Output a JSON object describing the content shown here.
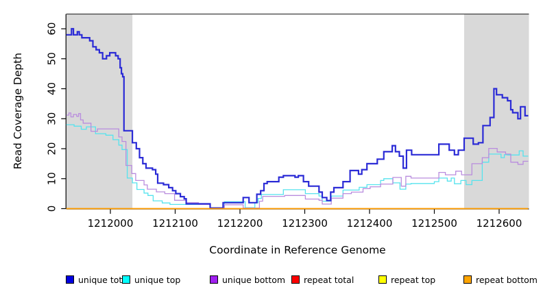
{
  "figure": {
    "background": "#ffffff",
    "shaded_region_color": "#d9d9d9",
    "top_border_color": "#3c3c3c"
  },
  "chart_data": {
    "type": "line",
    "subtype": "step",
    "title": "",
    "xlabel": "Coordinate in Reference Genome",
    "ylabel": "Read Coverage Depth",
    "xlim": [
      1211932,
      1212646
    ],
    "ylim": [
      0,
      65
    ],
    "x_ticks": [
      1212000,
      1212100,
      1212200,
      1212300,
      1212400,
      1212500,
      1212600
    ],
    "y_ticks": [
      0,
      10,
      20,
      30,
      40,
      50,
      60
    ],
    "grid": false,
    "legend_position": "bottom-horizontal",
    "shaded_regions": [
      {
        "x0": 1211932,
        "x1": 1212034
      },
      {
        "x0": 1212546,
        "x1": 1212646
      }
    ],
    "series": [
      {
        "name": "unique total",
        "color": "#2a2ad6",
        "legend_color": "#0000e0",
        "width": 2.2,
        "steps": [
          [
            1211932,
            58
          ],
          [
            1211940,
            60
          ],
          [
            1211943,
            58
          ],
          [
            1211949,
            59
          ],
          [
            1211952,
            58
          ],
          [
            1211956,
            57
          ],
          [
            1211968,
            56
          ],
          [
            1211973,
            54
          ],
          [
            1211978,
            53
          ],
          [
            1211983,
            52
          ],
          [
            1211988,
            50
          ],
          [
            1211994,
            51
          ],
          [
            1211999,
            52
          ],
          [
            1212008,
            51
          ],
          [
            1212012,
            50
          ],
          [
            1212015,
            47
          ],
          [
            1212017,
            45
          ],
          [
            1212019,
            44
          ],
          [
            1212021,
            26
          ],
          [
            1212034,
            22
          ],
          [
            1212040,
            20
          ],
          [
            1212045,
            17
          ],
          [
            1212050,
            15
          ],
          [
            1212055,
            13.5
          ],
          [
            1212065,
            13
          ],
          [
            1212070,
            11.5
          ],
          [
            1212073,
            8.5
          ],
          [
            1212082,
            8
          ],
          [
            1212090,
            7
          ],
          [
            1212096,
            6
          ],
          [
            1212101,
            5
          ],
          [
            1212108,
            4
          ],
          [
            1212114,
            3.3
          ],
          [
            1212117,
            1.6
          ],
          [
            1212154,
            0.2
          ],
          [
            1212174,
            2
          ],
          [
            1212205,
            3.7
          ],
          [
            1212214,
            2
          ],
          [
            1212226,
            4.8
          ],
          [
            1212232,
            6
          ],
          [
            1212237,
            8.4
          ],
          [
            1212242,
            9
          ],
          [
            1212260,
            10.5
          ],
          [
            1212267,
            11
          ],
          [
            1212285,
            10.5
          ],
          [
            1212290,
            11
          ],
          [
            1212298,
            9
          ],
          [
            1212306,
            7.5
          ],
          [
            1212322,
            5.5
          ],
          [
            1212327,
            3.7
          ],
          [
            1212334,
            2.7
          ],
          [
            1212340,
            5.5
          ],
          [
            1212345,
            7
          ],
          [
            1212359,
            9
          ],
          [
            1212370,
            12.7
          ],
          [
            1212383,
            11.5
          ],
          [
            1212388,
            13
          ],
          [
            1212396,
            15
          ],
          [
            1212412,
            16.5
          ],
          [
            1212422,
            19
          ],
          [
            1212435,
            21
          ],
          [
            1212440,
            19
          ],
          [
            1212446,
            17.5
          ],
          [
            1212452,
            13.5
          ],
          [
            1212457,
            19.5
          ],
          [
            1212465,
            18
          ],
          [
            1212507,
            21.5
          ],
          [
            1212523,
            19.5
          ],
          [
            1212531,
            18
          ],
          [
            1212537,
            19.5
          ],
          [
            1212546,
            23.5
          ],
          [
            1212560,
            21.5
          ],
          [
            1212568,
            22
          ],
          [
            1212575,
            27.7
          ],
          [
            1212586,
            30.4
          ],
          [
            1212592,
            40
          ],
          [
            1212596,
            38
          ],
          [
            1212605,
            37
          ],
          [
            1212613,
            36
          ],
          [
            1212618,
            33
          ],
          [
            1212621,
            32
          ],
          [
            1212629,
            30
          ],
          [
            1212633,
            34
          ],
          [
            1212640,
            31
          ]
        ]
      },
      {
        "name": "unique top",
        "color": "#55e3ee",
        "legend_color": "#00ffff",
        "width": 1.3,
        "steps": [
          [
            1211932,
            28
          ],
          [
            1211944,
            27.5
          ],
          [
            1211955,
            26.5
          ],
          [
            1211963,
            27.3
          ],
          [
            1211977,
            25
          ],
          [
            1211993,
            24.5
          ],
          [
            1212004,
            23
          ],
          [
            1212013,
            21.2
          ],
          [
            1212018,
            19.7
          ],
          [
            1212026,
            10.2
          ],
          [
            1212034,
            8.6
          ],
          [
            1212041,
            6.4
          ],
          [
            1212052,
            5.2
          ],
          [
            1212058,
            4.4
          ],
          [
            1212066,
            2.6
          ],
          [
            1212080,
            1.9
          ],
          [
            1212092,
            1.4
          ],
          [
            1212154,
            0.2
          ],
          [
            1212176,
            2.3
          ],
          [
            1212208,
            0.3
          ],
          [
            1212223,
            2
          ],
          [
            1212228,
            3.4
          ],
          [
            1212233,
            4.7
          ],
          [
            1212267,
            6.3
          ],
          [
            1212301,
            5
          ],
          [
            1212322,
            4.2
          ],
          [
            1212327,
            2.5
          ],
          [
            1212341,
            4.2
          ],
          [
            1212359,
            6.2
          ],
          [
            1212384,
            7.1
          ],
          [
            1212396,
            8
          ],
          [
            1212417,
            9.4
          ],
          [
            1212422,
            10
          ],
          [
            1212436,
            8.6
          ],
          [
            1212447,
            6.5
          ],
          [
            1212456,
            8.2
          ],
          [
            1212464,
            8.4
          ],
          [
            1212500,
            9
          ],
          [
            1212507,
            10.2
          ],
          [
            1212520,
            9.2
          ],
          [
            1212526,
            10.2
          ],
          [
            1212531,
            8.3
          ],
          [
            1212541,
            9.4
          ],
          [
            1212549,
            8
          ],
          [
            1212558,
            9.4
          ],
          [
            1212574,
            15.5
          ],
          [
            1212584,
            18.2
          ],
          [
            1212603,
            17
          ],
          [
            1212608,
            18
          ],
          [
            1212613,
            17.9
          ],
          [
            1212631,
            19.3
          ],
          [
            1212637,
            17.5
          ]
        ]
      },
      {
        "name": "unique bottom",
        "color": "#b98cde",
        "legend_color": "#a020f0",
        "width": 1.3,
        "steps": [
          [
            1211932,
            31.2
          ],
          [
            1211936,
            31.9
          ],
          [
            1211939,
            30.6
          ],
          [
            1211943,
            31.4
          ],
          [
            1211948,
            30.8
          ],
          [
            1211951,
            31.7
          ],
          [
            1211954,
            29.6
          ],
          [
            1211958,
            28.5
          ],
          [
            1211970,
            25.8
          ],
          [
            1211980,
            26.6
          ],
          [
            1212013,
            23.9
          ],
          [
            1212018,
            22.4
          ],
          [
            1212024,
            14.4
          ],
          [
            1212033,
            11.7
          ],
          [
            1212039,
            9.4
          ],
          [
            1212052,
            7.9
          ],
          [
            1212057,
            6.5
          ],
          [
            1212071,
            5.6
          ],
          [
            1212084,
            5
          ],
          [
            1212099,
            2.8
          ],
          [
            1212117,
            2
          ],
          [
            1212136,
            1.4
          ],
          [
            1212154,
            0.2
          ],
          [
            1212176,
            1.3
          ],
          [
            1212205,
            0.2
          ],
          [
            1212230,
            2.5
          ],
          [
            1212235,
            4.1
          ],
          [
            1212269,
            4.4
          ],
          [
            1212301,
            3.2
          ],
          [
            1212322,
            2.8
          ],
          [
            1212327,
            1.5
          ],
          [
            1212341,
            3.5
          ],
          [
            1212359,
            5
          ],
          [
            1212372,
            5.5
          ],
          [
            1212390,
            6.7
          ],
          [
            1212401,
            7.3
          ],
          [
            1212417,
            8.2
          ],
          [
            1212436,
            10.4
          ],
          [
            1212449,
            7.5
          ],
          [
            1212456,
            10.8
          ],
          [
            1212464,
            10.2
          ],
          [
            1212507,
            12.1
          ],
          [
            1212517,
            11.3
          ],
          [
            1212533,
            12.5
          ],
          [
            1212542,
            11.3
          ],
          [
            1212558,
            15
          ],
          [
            1212574,
            17
          ],
          [
            1212584,
            20.1
          ],
          [
            1212597,
            18.9
          ],
          [
            1212610,
            18.2
          ],
          [
            1212618,
            15.5
          ],
          [
            1212629,
            14.8
          ],
          [
            1212637,
            15.8
          ]
        ]
      },
      {
        "name": "repeat total",
        "color": "#dd0000",
        "legend_color": "#ff0000",
        "width": 1.3,
        "steps": [
          [
            1211932,
            0
          ]
        ]
      },
      {
        "name": "repeat top",
        "color": "#f0f000",
        "legend_color": "#ffff00",
        "width": 1.3,
        "steps": [
          [
            1211932,
            0
          ]
        ]
      },
      {
        "name": "repeat bottom",
        "color": "#ff9d00",
        "legend_color": "#ffa500",
        "width": 1.8,
        "steps": [
          [
            1211932,
            0
          ]
        ]
      }
    ]
  }
}
